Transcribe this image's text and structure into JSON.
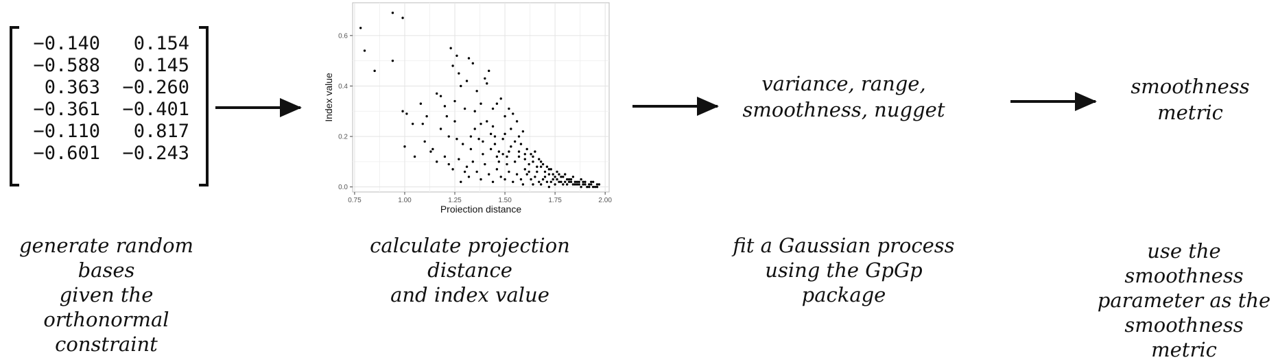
{
  "matrix": {
    "rows": [
      [
        "−0.140",
        "0.154"
      ],
      [
        "−0.588",
        "0.145"
      ],
      [
        "0.363",
        "−0.260"
      ],
      [
        "−0.361",
        "−0.401"
      ],
      [
        "−0.110",
        "0.817"
      ],
      [
        "−0.601",
        "−0.243"
      ]
    ]
  },
  "captions": {
    "step1": [
      "generate random bases",
      "given the orthonormal",
      "constraint"
    ],
    "step2": [
      "calculate projection distance",
      "and index value"
    ],
    "step3": [
      "fit a Gaussian process",
      "using the GpGp package"
    ],
    "step4": [
      "use the smoothness",
      "parameter as the",
      "smoothness metric"
    ]
  },
  "boxes": {
    "params": [
      "variance, range,",
      "smoothness, nugget"
    ],
    "metric": [
      "smoothness",
      "metric"
    ]
  },
  "chart_data": {
    "type": "scatter",
    "xlabel": "Projection distance",
    "ylabel": "Index value",
    "xlim": [
      0.74,
      2.02
    ],
    "ylim": [
      -0.02,
      0.73
    ],
    "xticks": [
      "0.75",
      "1.00",
      "1.25",
      "1.50",
      "1.75",
      "2.00"
    ],
    "yticks": [
      "0.0",
      "0.2",
      "0.4",
      "0.6"
    ],
    "grid": true,
    "points": [
      [
        0.78,
        0.63
      ],
      [
        0.8,
        0.54
      ],
      [
        0.85,
        0.46
      ],
      [
        0.94,
        0.69
      ],
      [
        0.94,
        0.5
      ],
      [
        0.99,
        0.67
      ],
      [
        0.99,
        0.3
      ],
      [
        1.0,
        0.16
      ],
      [
        1.01,
        0.29
      ],
      [
        1.04,
        0.25
      ],
      [
        1.05,
        0.12
      ],
      [
        1.08,
        0.33
      ],
      [
        1.09,
        0.25
      ],
      [
        1.1,
        0.18
      ],
      [
        1.11,
        0.28
      ],
      [
        1.13,
        0.14
      ],
      [
        1.14,
        0.15
      ],
      [
        1.16,
        0.37
      ],
      [
        1.18,
        0.36
      ],
      [
        1.2,
        0.32
      ],
      [
        1.21,
        0.28
      ],
      [
        1.22,
        0.2
      ],
      [
        1.23,
        0.55
      ],
      [
        1.24,
        0.48
      ],
      [
        1.25,
        0.34
      ],
      [
        1.26,
        0.52
      ],
      [
        1.27,
        0.45
      ],
      [
        1.28,
        0.4
      ],
      [
        1.3,
        0.31
      ],
      [
        1.31,
        0.42
      ],
      [
        1.32,
        0.51
      ],
      [
        1.34,
        0.49
      ],
      [
        1.35,
        0.3
      ],
      [
        1.36,
        0.38
      ],
      [
        1.38,
        0.33
      ],
      [
        1.4,
        0.43
      ],
      [
        1.41,
        0.41
      ],
      [
        1.42,
        0.46
      ],
      [
        1.44,
        0.31
      ],
      [
        1.46,
        0.33
      ],
      [
        1.48,
        0.35
      ],
      [
        1.5,
        0.28
      ],
      [
        1.52,
        0.31
      ],
      [
        1.54,
        0.29
      ],
      [
        1.56,
        0.26
      ],
      [
        1.59,
        0.22
      ],
      [
        1.26,
        0.19
      ],
      [
        1.29,
        0.17
      ],
      [
        1.33,
        0.15
      ],
      [
        1.37,
        0.19
      ],
      [
        1.39,
        0.13
      ],
      [
        1.43,
        0.21
      ],
      [
        1.45,
        0.17
      ],
      [
        1.47,
        0.14
      ],
      [
        1.49,
        0.19
      ],
      [
        1.51,
        0.12
      ],
      [
        1.53,
        0.16
      ],
      [
        1.55,
        0.1
      ],
      [
        1.57,
        0.14
      ],
      [
        1.6,
        0.11
      ],
      [
        1.62,
        0.09
      ],
      [
        1.64,
        0.12
      ],
      [
        1.66,
        0.08
      ],
      [
        1.68,
        0.1
      ],
      [
        1.7,
        0.06
      ],
      [
        1.72,
        0.07
      ],
      [
        1.74,
        0.05
      ],
      [
        1.76,
        0.06
      ],
      [
        1.78,
        0.04
      ],
      [
        1.8,
        0.05
      ],
      [
        1.82,
        0.03
      ],
      [
        1.84,
        0.04
      ],
      [
        1.86,
        0.02
      ],
      [
        1.88,
        0.03
      ],
      [
        1.9,
        0.02
      ],
      [
        1.92,
        0.01
      ],
      [
        1.94,
        0.02
      ],
      [
        1.96,
        0.01
      ],
      [
        1.97,
        0.01
      ],
      [
        1.22,
        0.09
      ],
      [
        1.24,
        0.07
      ],
      [
        1.27,
        0.11
      ],
      [
        1.31,
        0.08
      ],
      [
        1.34,
        0.1
      ],
      [
        1.36,
        0.06
      ],
      [
        1.4,
        0.09
      ],
      [
        1.42,
        0.05
      ],
      [
        1.46,
        0.07
      ],
      [
        1.48,
        0.04
      ],
      [
        1.52,
        0.06
      ],
      [
        1.56,
        0.05
      ],
      [
        1.58,
        0.03
      ],
      [
        1.61,
        0.05
      ],
      [
        1.63,
        0.03
      ],
      [
        1.65,
        0.04
      ],
      [
        1.67,
        0.02
      ],
      [
        1.69,
        0.03
      ],
      [
        1.71,
        0.02
      ],
      [
        1.73,
        0.02
      ],
      [
        1.75,
        0.01
      ],
      [
        1.77,
        0.02
      ],
      [
        1.79,
        0.01
      ],
      [
        1.81,
        0.01
      ],
      [
        1.83,
        0.02
      ],
      [
        1.85,
        0.01
      ],
      [
        1.87,
        0.01
      ],
      [
        1.89,
        0.01
      ],
      [
        1.91,
        0.0
      ],
      [
        1.93,
        0.01
      ],
      [
        1.95,
        0.0
      ],
      [
        1.44,
        0.24
      ],
      [
        1.5,
        0.21
      ],
      [
        1.55,
        0.18
      ],
      [
        1.58,
        0.17
      ],
      [
        1.61,
        0.15
      ],
      [
        1.63,
        0.13
      ],
      [
        1.65,
        0.14
      ],
      [
        1.67,
        0.11
      ],
      [
        1.69,
        0.09
      ],
      [
        1.71,
        0.08
      ],
      [
        1.73,
        0.07
      ],
      [
        1.77,
        0.05
      ],
      [
        1.79,
        0.04
      ],
      [
        1.83,
        0.03
      ],
      [
        1.87,
        0.02
      ],
      [
        1.35,
        0.23
      ],
      [
        1.38,
        0.25
      ],
      [
        1.41,
        0.26
      ],
      [
        1.45,
        0.2
      ],
      [
        1.53,
        0.23
      ],
      [
        1.57,
        0.2
      ],
      [
        1.18,
        0.23
      ],
      [
        1.2,
        0.12
      ],
      [
        1.16,
        0.1
      ],
      [
        1.28,
        0.02
      ],
      [
        1.32,
        0.04
      ],
      [
        1.38,
        0.03
      ],
      [
        1.44,
        0.02
      ],
      [
        1.5,
        0.03
      ],
      [
        1.54,
        0.02
      ],
      [
        1.59,
        0.01
      ],
      [
        1.64,
        0.01
      ],
      [
        1.68,
        0.01
      ],
      [
        1.72,
        0.0
      ],
      [
        1.3,
        0.06
      ],
      [
        1.33,
        0.2
      ],
      [
        1.47,
        0.1
      ],
      [
        1.51,
        0.09
      ],
      [
        1.6,
        0.07
      ],
      [
        1.62,
        0.06
      ],
      [
        1.66,
        0.06
      ],
      [
        1.7,
        0.04
      ],
      [
        1.74,
        0.03
      ],
      [
        1.76,
        0.03
      ],
      [
        1.78,
        0.02
      ],
      [
        1.8,
        0.02
      ],
      [
        1.82,
        0.02
      ],
      [
        1.84,
        0.01
      ],
      [
        1.86,
        0.01
      ],
      [
        1.88,
        0.0
      ],
      [
        1.9,
        0.01
      ],
      [
        1.92,
        0.0
      ],
      [
        1.94,
        0.0
      ],
      [
        1.96,
        0.0
      ],
      [
        1.25,
        0.26
      ],
      [
        1.43,
        0.15
      ],
      [
        1.49,
        0.13
      ],
      [
        1.39,
        0.18
      ],
      [
        1.46,
        0.12
      ],
      [
        1.52,
        0.14
      ],
      [
        1.57,
        0.12
      ],
      [
        1.6,
        0.13
      ],
      [
        1.64,
        0.1
      ],
      [
        1.68,
        0.08
      ],
      [
        1.72,
        0.05
      ],
      [
        1.75,
        0.04
      ],
      [
        1.81,
        0.03
      ],
      [
        1.85,
        0.02
      ],
      [
        1.89,
        0.02
      ],
      [
        1.93,
        0.02
      ]
    ]
  }
}
